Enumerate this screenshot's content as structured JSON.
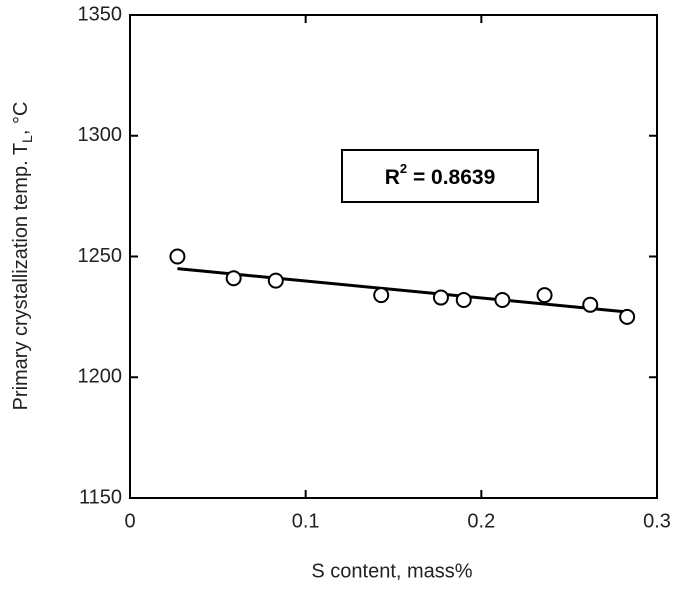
{
  "chart_data": {
    "type": "scatter",
    "xlabel": "S content, mass%",
    "ylabel": [
      "Primary crystallization temp. T",
      "L",
      ", °C"
    ],
    "annotation": [
      "R",
      "2",
      " = 0.8639"
    ],
    "x": [
      0.027,
      0.059,
      0.083,
      0.143,
      0.177,
      0.19,
      0.212,
      0.236,
      0.262,
      0.283
    ],
    "values": [
      1250,
      1241,
      1240,
      1234,
      1233,
      1232,
      1232,
      1234,
      1230,
      1225
    ],
    "color": "#000000",
    "trendline": {
      "x": [
        0.027,
        0.283
      ],
      "values": [
        1245,
        1227
      ]
    },
    "xlim": [
      0,
      0.3
    ],
    "ylim": [
      1150,
      1350
    ],
    "xticks": [
      0,
      0.1,
      0.2,
      0.3
    ],
    "yticks": [
      1150,
      1200,
      1250,
      1300,
      1350
    ]
  }
}
